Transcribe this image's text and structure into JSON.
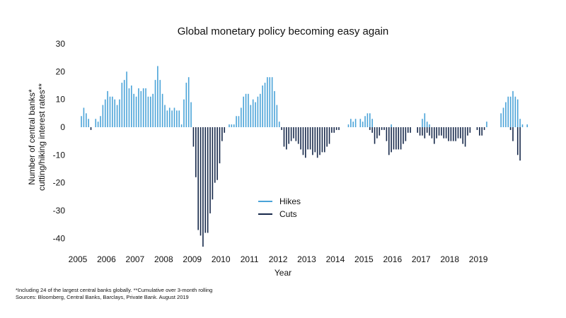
{
  "chart_data": {
    "type": "bar",
    "title": "Global monetary policy becoming easy again",
    "xlabel": "Year",
    "ylabel_lines": [
      "Number of central banks*",
      "cutting/hiking interest rates**"
    ],
    "ylim": [
      -45,
      30
    ],
    "yticks": [
      30,
      20,
      10,
      0,
      -10,
      -20,
      -30,
      -40
    ],
    "xticks": [
      "2005",
      "2006",
      "2007",
      "2008",
      "2009",
      "2010",
      "2011",
      "2012",
      "2013",
      "2014",
      "2015",
      "2016",
      "2017",
      "2018",
      "2019"
    ],
    "x_start": "2005-01",
    "frequency": "monthly",
    "legend_position": "center",
    "colors": {
      "hikes": "#4aa3d8",
      "cuts": "#16284a"
    },
    "series": [
      {
        "name": "Hikes",
        "values": [
          0,
          4,
          7,
          5,
          3,
          0,
          0,
          3,
          2,
          4,
          8,
          10,
          13,
          11,
          11,
          10,
          8,
          10,
          16,
          17,
          20,
          14,
          15,
          12,
          11,
          14,
          13,
          14,
          14,
          11,
          11,
          12,
          17,
          22,
          17,
          12,
          8,
          6,
          7,
          6,
          7,
          6,
          6,
          1,
          10,
          16,
          18,
          9,
          0,
          0,
          0,
          0,
          0,
          0,
          0,
          0,
          0,
          0,
          0,
          0,
          0,
          0,
          0,
          1,
          1,
          1,
          4,
          4,
          7,
          11,
          12,
          12,
          8,
          10,
          9,
          11,
          12,
          15,
          16,
          18,
          18,
          18,
          13,
          8,
          2,
          0,
          0,
          0,
          0,
          0,
          0,
          0,
          0,
          0,
          0,
          0,
          0,
          0,
          0,
          0,
          0,
          0,
          0,
          0,
          0,
          0,
          0,
          0,
          0,
          0,
          0,
          0,
          0,
          1,
          3,
          2,
          3,
          0,
          3,
          2,
          4,
          5,
          5,
          3,
          0,
          0,
          0,
          0,
          0,
          0,
          0,
          1,
          0,
          0,
          0,
          0,
          0,
          0,
          0,
          0,
          0,
          0,
          0,
          0,
          3,
          5,
          2,
          1,
          0,
          0,
          0,
          0,
          0,
          0,
          0,
          0,
          0,
          0,
          0,
          0,
          0,
          0,
          0,
          0,
          0,
          0,
          0,
          0,
          0,
          0,
          0,
          2,
          0,
          0,
          0,
          0,
          0,
          5,
          7,
          9,
          11,
          11,
          13,
          11,
          10,
          3,
          1,
          0,
          1,
          0,
          0,
          0
        ]
      },
      {
        "name": "Cuts",
        "values": [
          0,
          0,
          0,
          0,
          0,
          -1,
          0,
          0,
          0,
          0,
          0,
          0,
          0,
          0,
          0,
          0,
          0,
          0,
          0,
          0,
          0,
          0,
          0,
          0,
          0,
          0,
          0,
          0,
          0,
          0,
          0,
          0,
          0,
          0,
          0,
          0,
          0,
          0,
          0,
          0,
          0,
          0,
          0,
          0,
          0,
          0,
          0,
          0,
          -7,
          -18,
          -37,
          -39,
          -43,
          -38,
          -38,
          -31,
          -26,
          -20,
          -19,
          -13,
          -5,
          -2,
          0,
          0,
          0,
          0,
          0,
          0,
          0,
          0,
          0,
          0,
          0,
          0,
          0,
          0,
          0,
          0,
          0,
          0,
          0,
          0,
          0,
          0,
          0,
          -1,
          -7,
          -8,
          -6,
          -5,
          -4,
          -5,
          -6,
          -8,
          -10,
          -11,
          -8,
          -8,
          -10,
          -9,
          -11,
          -10,
          -9,
          -9,
          -7,
          -6,
          -2,
          -2,
          -1,
          -1,
          0,
          0,
          0,
          0,
          0,
          0,
          0,
          0,
          0,
          0,
          0,
          0,
          -1,
          -2,
          -6,
          -4,
          -3,
          -1,
          -1,
          -5,
          -10,
          -9,
          -8,
          -8,
          -8,
          -8,
          -6,
          -5,
          -2,
          -2,
          0,
          0,
          -2,
          -3,
          -3,
          -4,
          -2,
          -3,
          -4,
          -6,
          -4,
          -3,
          -3,
          -4,
          -4,
          -5,
          -5,
          -5,
          -5,
          -4,
          -4,
          -6,
          -7,
          -3,
          -2,
          0,
          0,
          -1,
          -3,
          -3,
          -1,
          0,
          0,
          0,
          0,
          0,
          0,
          0,
          0,
          0,
          0,
          -1,
          -5,
          0,
          -10,
          -12
        ]
      }
    ]
  },
  "footnote_lines": [
    "*Including 24 of the largest central banks globally. **Cumulative over 3-month rolling",
    "Sources: Bloomberg, Central Banks, Barclays, Private Bank. August 2019"
  ]
}
